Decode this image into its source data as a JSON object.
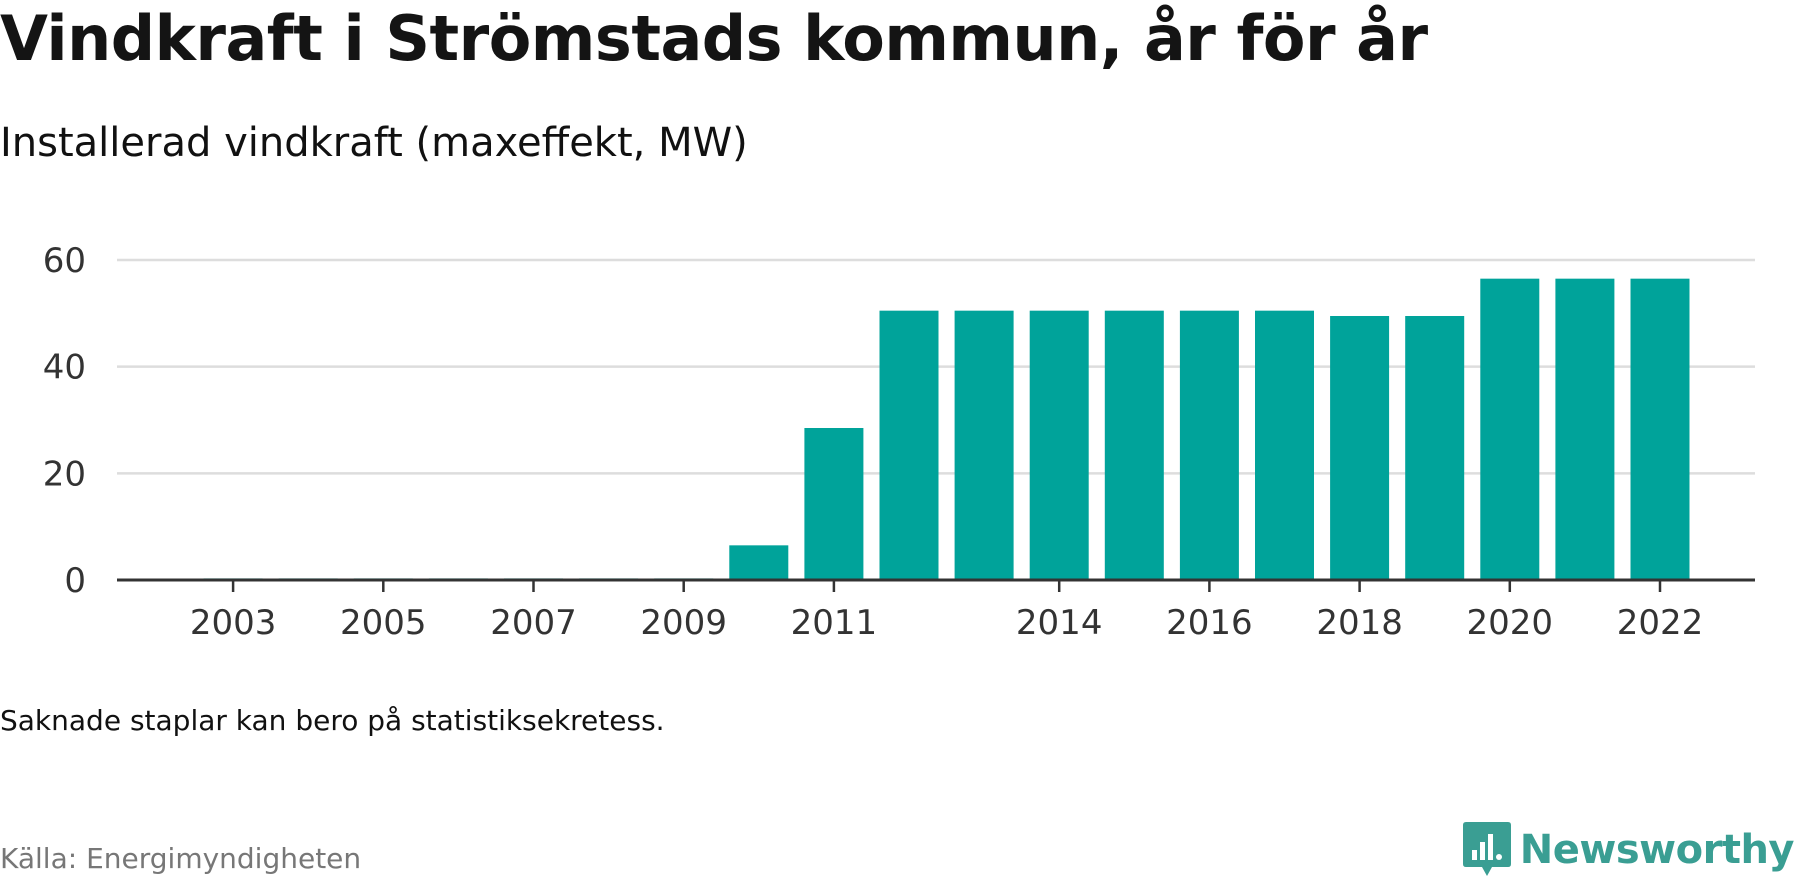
{
  "header": {
    "title": "Vindkraft i Strömstads kommun, år för år",
    "subtitle": "Installerad vindkraft (maxeffekt, MW)"
  },
  "footer": {
    "note": "Saknade staplar kan bero på statistiksekretess.",
    "source": "Källa: Energimyndigheten",
    "brand": "Newsworthy"
  },
  "colors": {
    "bar": "#00a39a",
    "grid": "#dddddd",
    "axis": "#333333",
    "tick_text": "#333333",
    "brand": "#3a9e93"
  },
  "chart_data": {
    "type": "bar",
    "categories": [
      "2002",
      "2003",
      "2004",
      "2005",
      "2006",
      "2007",
      "2008",
      "2009",
      "2010",
      "2011",
      "2012",
      "2013",
      "2014",
      "2015",
      "2016",
      "2017",
      "2018",
      "2019",
      "2020",
      "2021",
      "2022"
    ],
    "values": [
      0.1,
      0.3,
      0.3,
      0.3,
      0.3,
      0.3,
      0.3,
      0.3,
      6.5,
      28.5,
      50.5,
      50.5,
      50.5,
      50.5,
      50.5,
      50.5,
      49.5,
      49.5,
      56.5,
      56.5,
      56.5
    ],
    "x_tick_labels": [
      "2003",
      "2005",
      "2007",
      "2009",
      "2011",
      "2014",
      "2016",
      "2018",
      "2020",
      "2022"
    ],
    "y_ticks": [
      0,
      20,
      40,
      60
    ],
    "ylim": [
      0,
      60
    ],
    "grid": true,
    "legend": "none",
    "xlabel": "",
    "ylabel": ""
  }
}
